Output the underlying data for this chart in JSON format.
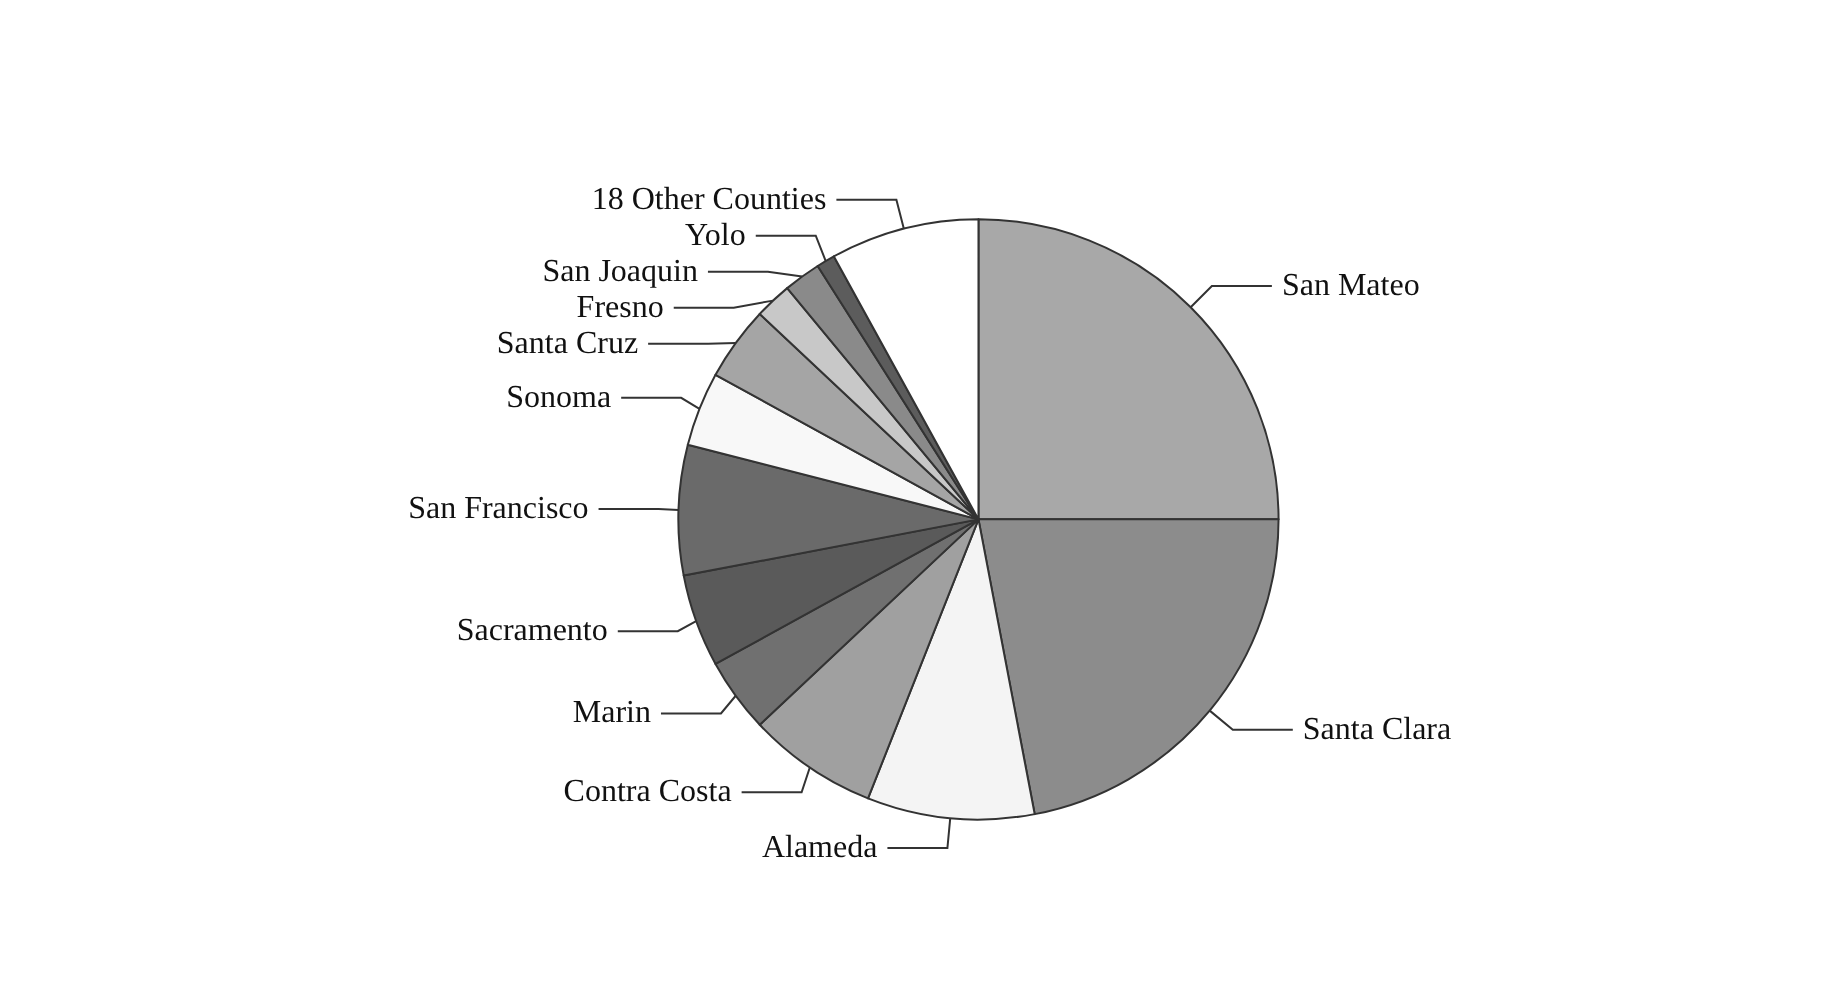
{
  "chart_data": {
    "type": "pie",
    "categories": [
      "San Mateo",
      "Santa Clara",
      "Alameda",
      "Contra Costa",
      "Marin",
      "Sacramento",
      "San Francisco",
      "Sonoma",
      "Santa Cruz",
      "Fresno",
      "San Joaquin",
      "Yolo",
      "18 Other Counties"
    ],
    "values": [
      25,
      22,
      9,
      7,
      4,
      5,
      7,
      4,
      4,
      2,
      2,
      1,
      8
    ],
    "colors": [
      "#a8a8a8",
      "#8c8c8c",
      "#f4f4f4",
      "#a0a0a0",
      "#707070",
      "#5a5a5a",
      "#6a6a6a",
      "#f8f8f8",
      "#a5a5a5",
      "#c8c8c8",
      "#8a8a8a",
      "#5c5c5c",
      "#ffffff"
    ],
    "legend": false
  }
}
